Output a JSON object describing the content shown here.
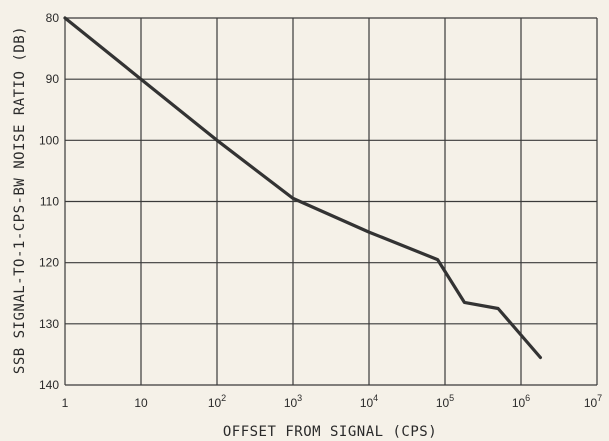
{
  "chart_data": {
    "type": "line",
    "xlabel": "OFFSET FROM SIGNAL (CPS)",
    "ylabel": "SSB SIGNAL-TO-1-CPS-BW NOISE RATIO (DB)",
    "x_scale": "log",
    "xlim": [
      1,
      10000000
    ],
    "ylim": [
      80,
      140
    ],
    "y_inverted": true,
    "grid": true,
    "x_ticks": [
      {
        "value": 1,
        "base": "1",
        "exp": ""
      },
      {
        "value": 10,
        "base": "10",
        "exp": ""
      },
      {
        "value": 100,
        "base": "10",
        "exp": "2"
      },
      {
        "value": 1000,
        "base": "10",
        "exp": "3"
      },
      {
        "value": 10000,
        "base": "10",
        "exp": "4"
      },
      {
        "value": 100000,
        "base": "10",
        "exp": "5"
      },
      {
        "value": 1000000,
        "base": "10",
        "exp": "6"
      },
      {
        "value": 10000000,
        "base": "10",
        "exp": "7"
      }
    ],
    "y_ticks": [
      {
        "value": 80,
        "label": "80"
      },
      {
        "value": 90,
        "label": "90"
      },
      {
        "value": 100,
        "label": "100"
      },
      {
        "value": 110,
        "label": "110"
      },
      {
        "value": 120,
        "label": "120"
      },
      {
        "value": 130,
        "label": "130"
      },
      {
        "value": 140,
        "label": "140"
      }
    ],
    "series": [
      {
        "color": "#333333",
        "x": [
          1,
          10,
          100,
          1000,
          10000,
          80000,
          180000,
          500000,
          1800000
        ],
        "y": [
          80,
          90,
          100,
          109.5,
          115,
          119.5,
          126.5,
          127.5,
          135.5
        ]
      }
    ]
  }
}
